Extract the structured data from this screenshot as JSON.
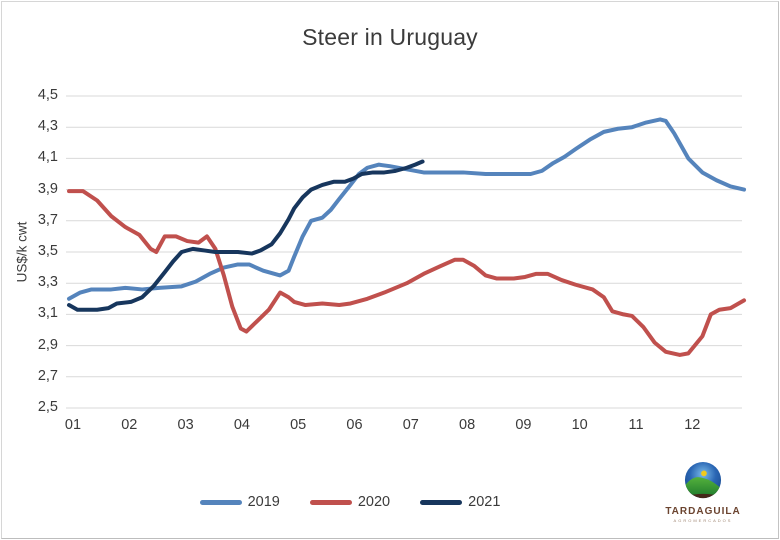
{
  "logo": {
    "brand": "TARDAGUILA",
    "subtext": "AGROMERCADOS"
  },
  "frame_border_color": "#d6d6d6",
  "grid_color": "#d9d9d9",
  "text_color": "#3a3a3a",
  "chart_data": {
    "type": "line",
    "title": "Steer in Uruguay",
    "xlabel": "",
    "ylabel": "US$/k cwt",
    "ylim": [
      2.5,
      4.5
    ],
    "grid": true,
    "legend_position": "bottom",
    "y_ticks": [
      "4,5",
      "4,3",
      "4,1",
      "3,9",
      "3,7",
      "3,5",
      "3,3",
      "3,1",
      "2,9",
      "2,7",
      "2,5"
    ],
    "x_ticks": [
      "01",
      "02",
      "03",
      "04",
      "05",
      "06",
      "07",
      "08",
      "09",
      "10",
      "11",
      "12"
    ],
    "series": [
      {
        "name": "2019",
        "color": "#5584bc",
        "x": [
          1.0,
          1.2,
          1.4,
          1.75,
          2.0,
          2.3,
          2.6,
          3.0,
          3.25,
          3.5,
          3.75,
          4.0,
          4.2,
          4.45,
          4.75,
          4.9,
          5.0,
          5.15,
          5.3,
          5.5,
          5.65,
          5.8,
          6.0,
          6.15,
          6.3,
          6.5,
          6.7,
          7.0,
          7.3,
          7.6,
          8.0,
          8.4,
          8.8,
          9.2,
          9.4,
          9.6,
          9.8,
          10.0,
          10.25,
          10.5,
          10.75,
          11.0,
          11.25,
          11.5,
          11.6,
          11.75,
          12.0,
          12.25,
          12.5,
          12.75,
          12.99
        ],
        "values": [
          3.2,
          3.24,
          3.26,
          3.26,
          3.27,
          3.26,
          3.27,
          3.28,
          3.31,
          3.36,
          3.4,
          3.42,
          3.42,
          3.38,
          3.35,
          3.38,
          3.47,
          3.6,
          3.7,
          3.72,
          3.77,
          3.84,
          3.93,
          4.0,
          4.04,
          4.06,
          4.05,
          4.03,
          4.01,
          4.01,
          4.01,
          4.0,
          4.0,
          4.0,
          4.02,
          4.07,
          4.11,
          4.16,
          4.22,
          4.27,
          4.29,
          4.3,
          4.33,
          4.35,
          4.34,
          4.26,
          4.1,
          4.01,
          3.96,
          3.92,
          3.9
        ]
      },
      {
        "name": "2020",
        "color": "#c0504d",
        "x": [
          1.0,
          1.25,
          1.5,
          1.75,
          2.0,
          2.25,
          2.45,
          2.55,
          2.7,
          2.9,
          3.1,
          3.3,
          3.45,
          3.6,
          3.75,
          3.9,
          4.05,
          4.15,
          4.35,
          4.55,
          4.75,
          4.9,
          5.0,
          5.2,
          5.5,
          5.8,
          6.0,
          6.3,
          6.6,
          7.0,
          7.3,
          7.6,
          7.85,
          8.0,
          8.2,
          8.4,
          8.6,
          8.9,
          9.1,
          9.3,
          9.5,
          9.75,
          10.0,
          10.3,
          10.5,
          10.65,
          10.85,
          11.0,
          11.2,
          11.4,
          11.6,
          11.85,
          12.0,
          12.25,
          12.4,
          12.55,
          12.75,
          12.99
        ],
        "values": [
          3.89,
          3.89,
          3.83,
          3.73,
          3.66,
          3.61,
          3.52,
          3.5,
          3.6,
          3.6,
          3.57,
          3.56,
          3.6,
          3.52,
          3.35,
          3.15,
          3.01,
          2.99,
          3.06,
          3.13,
          3.24,
          3.21,
          3.18,
          3.16,
          3.17,
          3.16,
          3.17,
          3.2,
          3.24,
          3.3,
          3.36,
          3.41,
          3.45,
          3.45,
          3.41,
          3.35,
          3.33,
          3.33,
          3.34,
          3.36,
          3.36,
          3.32,
          3.29,
          3.26,
          3.21,
          3.12,
          3.1,
          3.09,
          3.02,
          2.92,
          2.86,
          2.84,
          2.85,
          2.96,
          3.1,
          3.13,
          3.14,
          3.19
        ]
      },
      {
        "name": "2021",
        "color": "#17365d",
        "x": [
          1.0,
          1.15,
          1.5,
          1.7,
          1.85,
          2.1,
          2.3,
          2.5,
          2.7,
          2.85,
          3.0,
          3.2,
          3.4,
          3.6,
          3.8,
          4.0,
          4.25,
          4.4,
          4.6,
          4.75,
          4.9,
          5.0,
          5.15,
          5.3,
          5.5,
          5.7,
          5.9,
          6.05,
          6.2,
          6.4,
          6.6,
          6.8,
          7.0,
          7.15,
          7.28
        ],
        "values": [
          3.16,
          3.13,
          3.13,
          3.14,
          3.17,
          3.18,
          3.21,
          3.28,
          3.37,
          3.44,
          3.5,
          3.52,
          3.51,
          3.5,
          3.5,
          3.5,
          3.49,
          3.51,
          3.55,
          3.62,
          3.71,
          3.78,
          3.85,
          3.9,
          3.93,
          3.95,
          3.95,
          3.97,
          4.0,
          4.01,
          4.01,
          4.02,
          4.04,
          4.06,
          4.08
        ]
      }
    ]
  }
}
